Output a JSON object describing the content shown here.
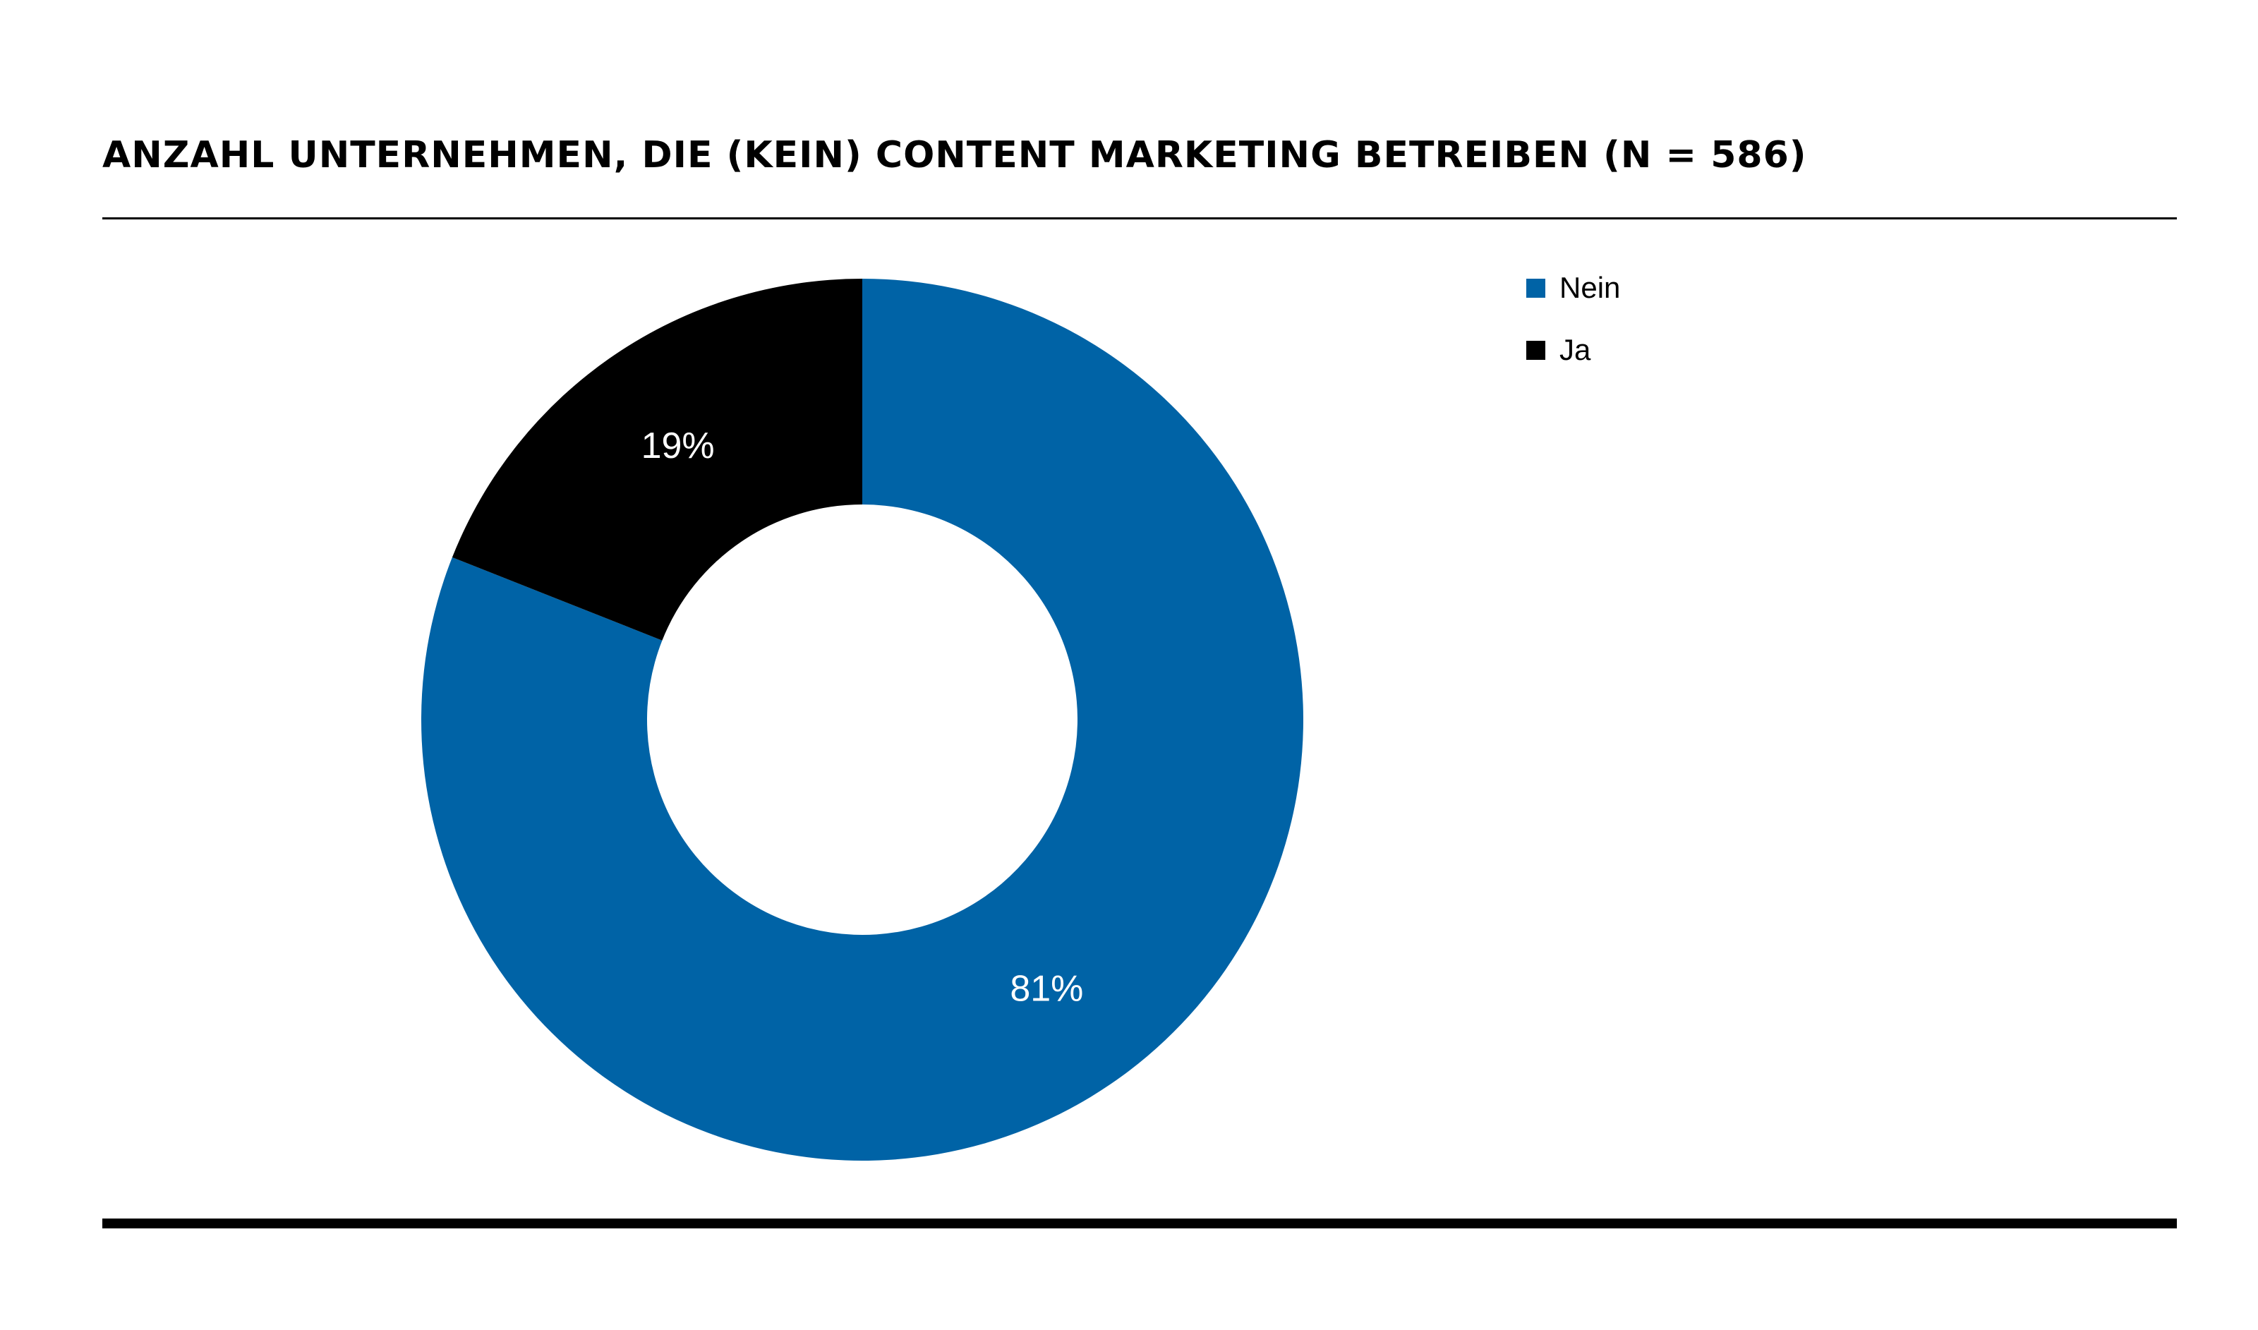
{
  "chart_data": {
    "type": "pie",
    "variant": "donut",
    "title": "ANZAHL UNTERNEHMEN, DIE (KEIN) CONTENT MARKETING BETREIBEN (N = 586)",
    "categories": [
      "Nein",
      "Ja"
    ],
    "values": [
      81,
      19
    ],
    "labels": [
      "81%",
      "19%"
    ],
    "colors": [
      "#0063a6",
      "#000000"
    ],
    "legend_position": "top-right",
    "start": "top",
    "direction": "clockwise"
  }
}
